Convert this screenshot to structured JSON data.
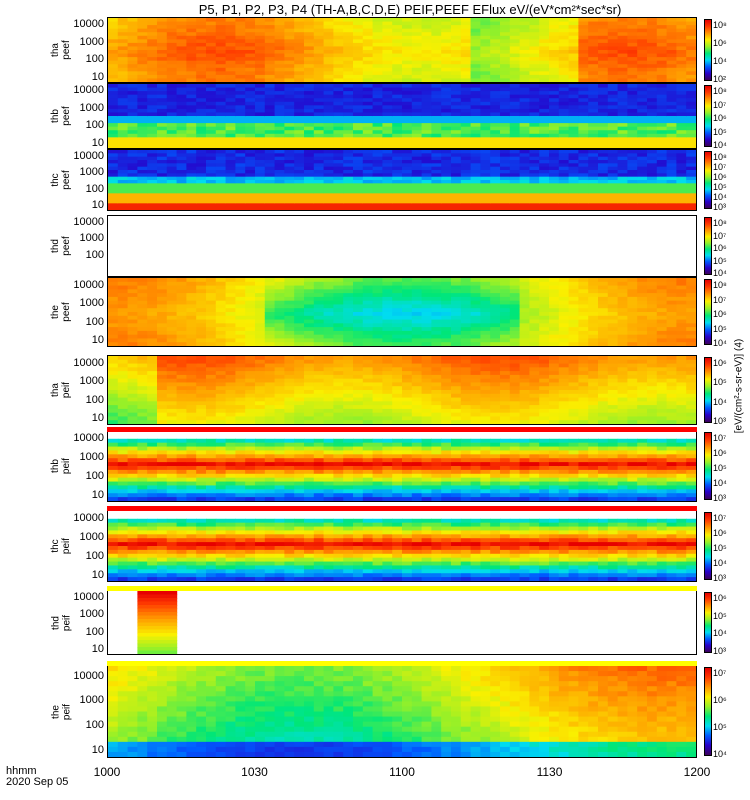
{
  "title": "P5, P1, P2, P3, P4 (TH-A,B,C,D,E) PEIF,PEEF EFlux eV/(eV*cm²*sec*sr)",
  "colorbar_label": "[eV/(cm²-s-sr-eV)] (4)",
  "x_label_hhmm": "hhmm",
  "x_label_date": "2020 Sep 05",
  "chart_data": {
    "type": "heatmap",
    "x_axis": {
      "label": "hhmm",
      "ticks": [
        "1000",
        "1030",
        "1100",
        "1130",
        "1200"
      ],
      "range": [
        "10:00",
        "12:00"
      ]
    },
    "y_scale": "log",
    "panels": [
      {
        "name": "tha peef",
        "yticks": [
          "10000",
          "1000",
          "100",
          "10"
        ],
        "colorbar": [
          "10⁸",
          "10⁶",
          "10⁴",
          "10²"
        ],
        "data_present": true,
        "pattern": "warm-hot"
      },
      {
        "name": "thb peef",
        "yticks": [
          "10000",
          "1000",
          "100",
          "10"
        ],
        "colorbar": [
          "10⁸",
          "10⁷",
          "10⁶",
          "10⁵",
          "10⁴"
        ],
        "data_present": true,
        "pattern": "low-energy-band"
      },
      {
        "name": "thc peef",
        "yticks": [
          "10000",
          "1000",
          "100",
          "10"
        ],
        "colorbar": [
          "10⁸",
          "10⁷",
          "10⁶",
          "10⁵",
          "10⁴",
          "10³"
        ],
        "data_present": true,
        "pattern": "low-energy-hot"
      },
      {
        "name": "thd peef",
        "yticks": [
          "10000",
          "1000",
          "100"
        ],
        "colorbar": [
          "10⁸",
          "10⁷",
          "10⁶",
          "10⁵",
          "10⁴"
        ],
        "data_present": false,
        "pattern": "none"
      },
      {
        "name": "the peef",
        "yticks": [
          "10000",
          "1000",
          "100",
          "10"
        ],
        "colorbar": [
          "10⁸",
          "10⁷",
          "10⁶",
          "10⁵",
          "10⁴"
        ],
        "data_present": true,
        "pattern": "warm-mid"
      },
      {
        "name": "tha peif",
        "yticks": [
          "10000",
          "1000",
          "100",
          "10"
        ],
        "colorbar": [
          "10⁶",
          "10⁵",
          "10⁴",
          "10³"
        ],
        "data_present": true,
        "pattern": "ion-high"
      },
      {
        "name": "thb peif",
        "yticks": [
          "10000",
          "1000",
          "100",
          "10"
        ],
        "colorbar": [
          "10⁷",
          "10⁶",
          "10⁵",
          "10⁴",
          "10³"
        ],
        "data_present": true,
        "pattern": "ion-band"
      },
      {
        "name": "thc peif",
        "yticks": [
          "10000",
          "1000",
          "100",
          "10"
        ],
        "colorbar": [
          "10⁷",
          "10⁶",
          "10⁵",
          "10⁴",
          "10³"
        ],
        "data_present": true,
        "pattern": "ion-band"
      },
      {
        "name": "thd peif",
        "yticks": [
          "10000",
          "1000",
          "100",
          "10"
        ],
        "colorbar": [
          "10⁶",
          "10⁵",
          "10⁴",
          "10³"
        ],
        "data_present": true,
        "pattern": "short-burst"
      },
      {
        "name": "the peif",
        "yticks": [
          "10000",
          "1000",
          "100",
          "10"
        ],
        "colorbar": [
          "10⁷",
          "10⁶",
          "10⁵",
          "10⁴"
        ],
        "data_present": true,
        "pattern": "ion-mixed"
      }
    ]
  }
}
